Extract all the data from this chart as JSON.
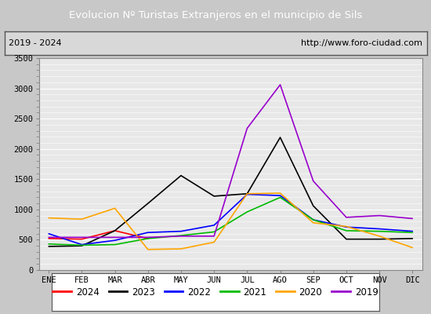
{
  "title": "Evolucion Nº Turistas Extranjeros en el municipio de Sils",
  "subtitle_left": "2019 - 2024",
  "subtitle_right": "http://www.foro-ciudad.com",
  "title_bg": "#4472c4",
  "title_color": "white",
  "months": [
    "ENE",
    "FEB",
    "MAR",
    "ABR",
    "MAY",
    "JUN",
    "JUL",
    "AGO",
    "SEP",
    "OCT",
    "NOV",
    "DIC"
  ],
  "ylim": [
    0,
    3500
  ],
  "yticks": [
    0,
    500,
    1000,
    1500,
    2000,
    2500,
    3000,
    3500
  ],
  "series": {
    "2024": {
      "color": "#ff0000",
      "data": [
        520,
        510,
        650,
        520,
        null,
        null,
        null,
        null,
        null,
        null,
        null,
        null
      ]
    },
    "2023": {
      "color": "#000000",
      "data": [
        390,
        400,
        650,
        1100,
        1560,
        1220,
        1260,
        2190,
        1060,
        510,
        510,
        520
      ]
    },
    "2022": {
      "color": "#0000ff",
      "data": [
        600,
        420,
        490,
        620,
        640,
        740,
        1250,
        1230,
        830,
        710,
        680,
        640
      ]
    },
    "2021": {
      "color": "#00bb00",
      "data": [
        430,
        410,
        420,
        520,
        570,
        630,
        960,
        1200,
        830,
        650,
        640,
        620
      ]
    },
    "2020": {
      "color": "#ffa500",
      "data": [
        860,
        840,
        1020,
        340,
        350,
        460,
        1260,
        1270,
        780,
        720,
        560,
        370
      ]
    },
    "2019": {
      "color": "#9900cc",
      "data": [
        540,
        540,
        540,
        540,
        560,
        560,
        2340,
        3060,
        1470,
        870,
        900,
        850
      ]
    }
  },
  "legend_order": [
    "2024",
    "2023",
    "2022",
    "2021",
    "2020",
    "2019"
  ],
  "plot_bg": "#e8e8e8",
  "grid_color": "#ffffff",
  "outer_bg": "#c8c8c8"
}
